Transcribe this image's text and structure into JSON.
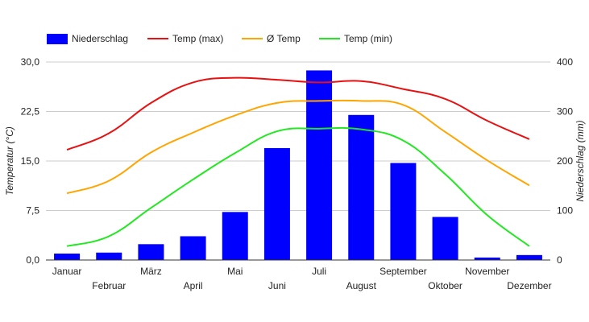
{
  "chart_data": {
    "type": "bar",
    "title": "",
    "categories": [
      "Januar",
      "Februar",
      "März",
      "April",
      "Mai",
      "Juni",
      "Juli",
      "August",
      "September",
      "Oktober",
      "November",
      "Dezember"
    ],
    "ylabel": "Temperatur (°C)",
    "y2label": "Niederschlag (mm)",
    "ylim": [
      0,
      30
    ],
    "y2lim": [
      0,
      400
    ],
    "yticks": [
      "0,0",
      "7,5",
      "15,0",
      "22,5",
      "30,0"
    ],
    "yticks_values": [
      0,
      7.5,
      15,
      22.5,
      30
    ],
    "y2ticks": [
      "0",
      "100",
      "200",
      "300",
      "400"
    ],
    "y2ticks_values": [
      0,
      100,
      200,
      300,
      400
    ],
    "grid": true,
    "legend_position": "top-left",
    "series": [
      {
        "name": "Niederschlag",
        "kind": "bar",
        "axis": "right",
        "color": "#0000ff",
        "values": [
          13,
          15,
          32,
          48,
          97,
          226,
          383,
          293,
          196,
          87,
          5,
          10
        ]
      },
      {
        "name": "Temp (max)",
        "kind": "line",
        "axis": "left",
        "color": "#e81010",
        "values": [
          16.7,
          19.2,
          23.8,
          26.9,
          27.6,
          27.3,
          26.9,
          27.1,
          25.9,
          24.4,
          21.1,
          18.3
        ]
      },
      {
        "name": "Ø Temp",
        "kind": "line",
        "axis": "left",
        "color": "#ffa500",
        "values": [
          10.1,
          12.0,
          16.3,
          19.3,
          21.9,
          23.8,
          24.1,
          24.1,
          23.5,
          19.4,
          15.1,
          11.3
        ]
      },
      {
        "name": "Temp (min)",
        "kind": "line",
        "axis": "left",
        "color": "#22e822",
        "values": [
          2.1,
          3.6,
          7.9,
          12.2,
          16.2,
          19.5,
          19.9,
          19.8,
          18.1,
          13.0,
          6.8,
          2.1
        ]
      }
    ]
  }
}
